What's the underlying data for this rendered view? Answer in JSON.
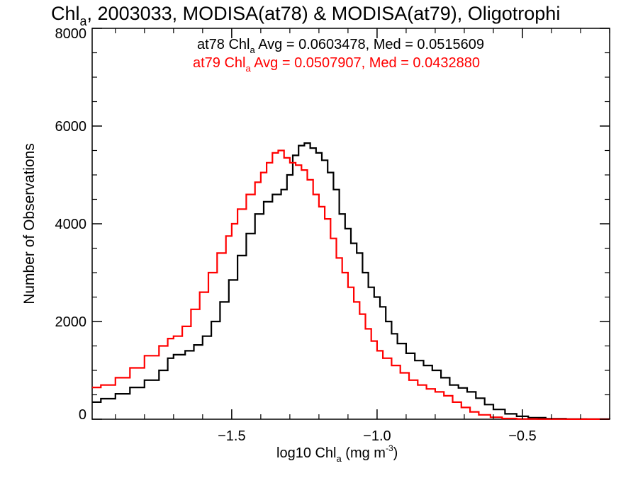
{
  "title": {
    "prefix": "Chl",
    "sub": "a",
    "rest": ", 2003033, MODISA(at78) & MODISA(at79), Oligotrophi"
  },
  "legend": {
    "at78": {
      "prefix": "at78 Chl",
      "sub": "a",
      "rest": " Avg = 0.0603478, Med = 0.0515609",
      "color": "#000000"
    },
    "at79": {
      "prefix": "at79 Chl",
      "sub": "a",
      "rest": " Avg = 0.0507907, Med = 0.0432880",
      "color": "#ff0000"
    }
  },
  "xaxis": {
    "label_prefix": "log10 Chl",
    "label_sub": "a",
    "label_unit": " (mg m",
    "label_sup": "-3",
    "label_close": ")"
  },
  "yaxis": {
    "label": "Number of Observations"
  },
  "chart_data": {
    "type": "line",
    "title": "Chla, 2003033, MODISA(at78) & MODISA(at79), Oligotrophi",
    "xlabel": "log10 Chla (mg m-3)",
    "ylabel": "Number of Observations",
    "xlim": [
      -1.98,
      -0.2
    ],
    "ylim": [
      0,
      8000
    ],
    "xticks": [
      -1.5,
      -1.0,
      -0.5
    ],
    "xtick_labels": [
      "−1.5",
      "−1.0",
      "−0.5"
    ],
    "yticks": [
      0,
      2000,
      4000,
      6000,
      8000
    ],
    "ytick_labels": [
      "0",
      "2000",
      "4000",
      "6000",
      "8000"
    ],
    "step": true,
    "legend_position": "top-center",
    "series": [
      {
        "name": "at78",
        "color": "#000000",
        "points": [
          [
            -1.98,
            350
          ],
          [
            -1.95,
            420
          ],
          [
            -1.9,
            520
          ],
          [
            -1.85,
            650
          ],
          [
            -1.8,
            800
          ],
          [
            -1.75,
            1000
          ],
          [
            -1.72,
            1250
          ],
          [
            -1.7,
            1320
          ],
          [
            -1.66,
            1400
          ],
          [
            -1.63,
            1520
          ],
          [
            -1.6,
            1700
          ],
          [
            -1.57,
            2000
          ],
          [
            -1.54,
            2400
          ],
          [
            -1.51,
            2850
          ],
          [
            -1.48,
            3350
          ],
          [
            -1.45,
            3800
          ],
          [
            -1.42,
            4200
          ],
          [
            -1.39,
            4450
          ],
          [
            -1.36,
            4600
          ],
          [
            -1.33,
            4700
          ],
          [
            -1.31,
            5000
          ],
          [
            -1.29,
            5400
          ],
          [
            -1.27,
            5600
          ],
          [
            -1.25,
            5650
          ],
          [
            -1.23,
            5550
          ],
          [
            -1.21,
            5450
          ],
          [
            -1.19,
            5300
          ],
          [
            -1.17,
            5050
          ],
          [
            -1.15,
            4700
          ],
          [
            -1.13,
            4200
          ],
          [
            -1.11,
            3900
          ],
          [
            -1.09,
            3600
          ],
          [
            -1.07,
            3400
          ],
          [
            -1.05,
            3000
          ],
          [
            -1.03,
            2700
          ],
          [
            -1.01,
            2500
          ],
          [
            -0.99,
            2300
          ],
          [
            -0.97,
            2000
          ],
          [
            -0.95,
            1750
          ],
          [
            -0.93,
            1550
          ],
          [
            -0.9,
            1350
          ],
          [
            -0.87,
            1200
          ],
          [
            -0.84,
            1100
          ],
          [
            -0.81,
            1000
          ],
          [
            -0.78,
            850
          ],
          [
            -0.75,
            700
          ],
          [
            -0.72,
            640
          ],
          [
            -0.69,
            560
          ],
          [
            -0.66,
            430
          ],
          [
            -0.63,
            300
          ],
          [
            -0.6,
            200
          ],
          [
            -0.56,
            110
          ],
          [
            -0.52,
            60
          ],
          [
            -0.48,
            30
          ],
          [
            -0.42,
            12
          ],
          [
            -0.35,
            5
          ],
          [
            -0.28,
            3
          ],
          [
            -0.2,
            2
          ]
        ]
      },
      {
        "name": "at79",
        "color": "#ff0000",
        "points": [
          [
            -1.98,
            650
          ],
          [
            -1.95,
            700
          ],
          [
            -1.9,
            850
          ],
          [
            -1.85,
            1050
          ],
          [
            -1.8,
            1300
          ],
          [
            -1.75,
            1500
          ],
          [
            -1.72,
            1650
          ],
          [
            -1.7,
            1700
          ],
          [
            -1.67,
            1900
          ],
          [
            -1.64,
            2250
          ],
          [
            -1.61,
            2600
          ],
          [
            -1.58,
            3000
          ],
          [
            -1.55,
            3400
          ],
          [
            -1.52,
            3750
          ],
          [
            -1.5,
            4000
          ],
          [
            -1.48,
            4300
          ],
          [
            -1.45,
            4600
          ],
          [
            -1.42,
            4850
          ],
          [
            -1.4,
            5050
          ],
          [
            -1.38,
            5250
          ],
          [
            -1.36,
            5450
          ],
          [
            -1.34,
            5500
          ],
          [
            -1.32,
            5350
          ],
          [
            -1.3,
            5250
          ],
          [
            -1.28,
            5200
          ],
          [
            -1.26,
            5100
          ],
          [
            -1.24,
            4900
          ],
          [
            -1.22,
            4600
          ],
          [
            -1.2,
            4350
          ],
          [
            -1.18,
            4100
          ],
          [
            -1.16,
            3700
          ],
          [
            -1.14,
            3300
          ],
          [
            -1.12,
            3000
          ],
          [
            -1.1,
            2700
          ],
          [
            -1.08,
            2400
          ],
          [
            -1.06,
            2150
          ],
          [
            -1.04,
            1850
          ],
          [
            -1.02,
            1600
          ],
          [
            -1.0,
            1400
          ],
          [
            -0.98,
            1250
          ],
          [
            -0.95,
            1100
          ],
          [
            -0.92,
            950
          ],
          [
            -0.89,
            800
          ],
          [
            -0.86,
            700
          ],
          [
            -0.83,
            620
          ],
          [
            -0.8,
            560
          ],
          [
            -0.77,
            480
          ],
          [
            -0.74,
            350
          ],
          [
            -0.71,
            240
          ],
          [
            -0.68,
            150
          ],
          [
            -0.65,
            90
          ],
          [
            -0.61,
            40
          ],
          [
            -0.57,
            15
          ],
          [
            -0.52,
            6
          ],
          [
            -0.45,
            3
          ],
          [
            -0.35,
            2
          ],
          [
            -0.2,
            1
          ]
        ]
      }
    ]
  }
}
